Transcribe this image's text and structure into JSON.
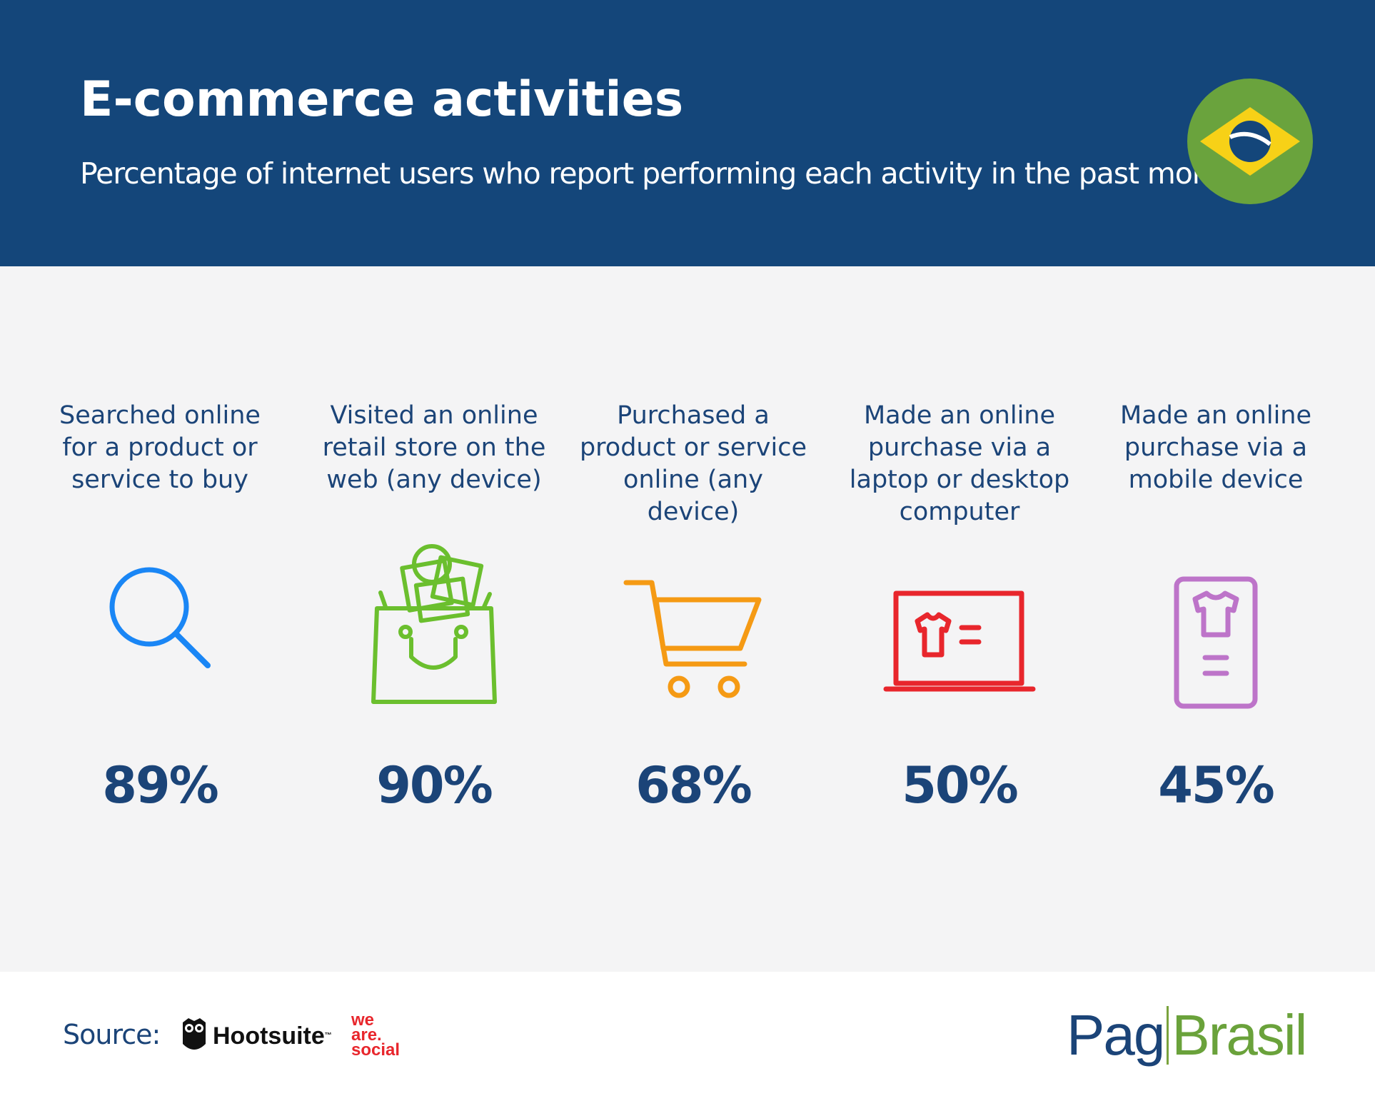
{
  "header": {
    "title": "E-commerce activities",
    "subtitle": "Percentage of internet users who report performing each activity in the past month",
    "flag_icon": "brazil-flag-icon"
  },
  "activities": [
    {
      "label": "Searched online for a product or service to buy",
      "value": "89%",
      "icon": "search-icon",
      "color": "#1a86f5"
    },
    {
      "label": "Visited an online retail store on the web (any device)",
      "value": "90%",
      "icon": "shopping-bag-icon",
      "color": "#6bbf2e"
    },
    {
      "label": "Purchased a product or service online (any device)",
      "value": "68%",
      "icon": "shopping-cart-icon",
      "color": "#f59a14"
    },
    {
      "label": "Made an online purchase via a laptop or desktop computer",
      "value": "50%",
      "icon": "laptop-icon",
      "color": "#e8262c"
    },
    {
      "label": "Made an online purchase via a mobile device",
      "value": "45%",
      "icon": "mobile-device-icon",
      "color": "#bd74c9"
    }
  ],
  "footer": {
    "source_label": "Source:",
    "hootsuite": "Hootsuite",
    "hootsuite_tm": "™",
    "we_are_social": [
      "we",
      "are.",
      "social"
    ],
    "logo_left": "Pag",
    "logo_right": "Brasil"
  }
}
